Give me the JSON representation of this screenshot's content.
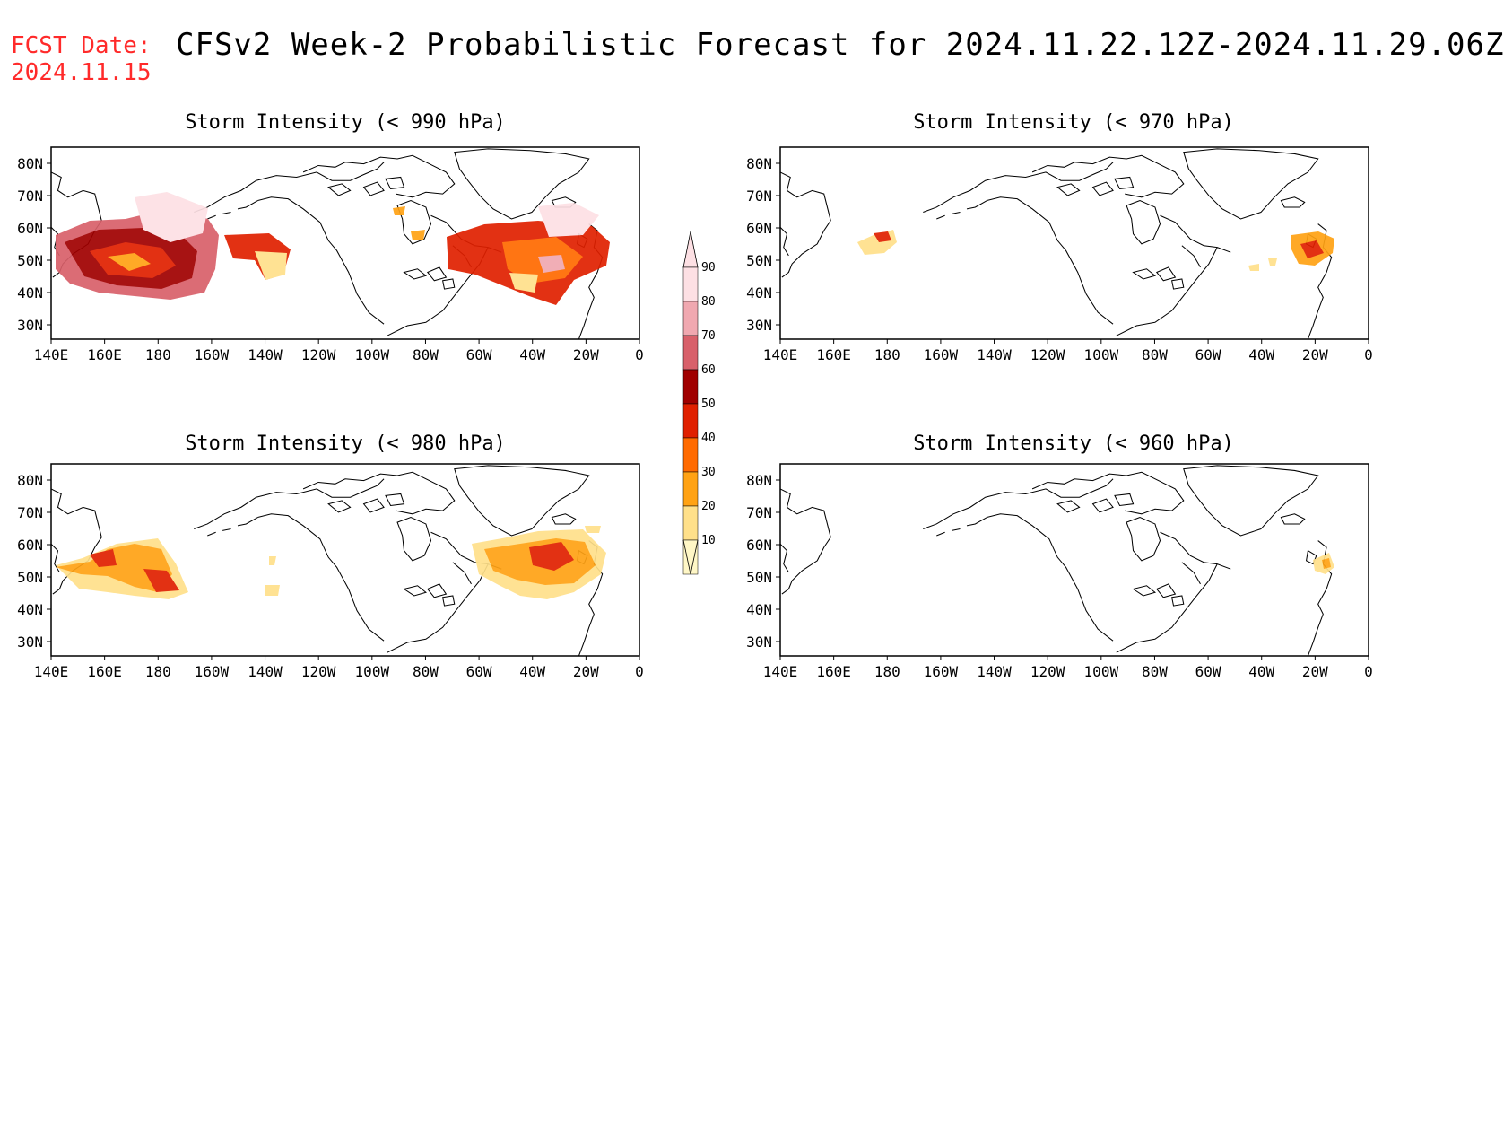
{
  "header": {
    "fcst_label": "FCST Date:",
    "fcst_date": "2024.11.15",
    "title": "CFSv2 Week-2 Probabilistic Forecast for 2024.11.22.12Z-2024.11.29.06Z"
  },
  "colors": {
    "title_red": "#ff2a2a",
    "scale": [
      "#fff7c6",
      "#ffe08a",
      "#ffa214",
      "#ff6a00",
      "#e02000",
      "#a00000",
      "#d8606a",
      "#f0a8b0",
      "#fde0e4"
    ]
  },
  "colorbar": {
    "labels": [
      "90",
      "80",
      "70",
      "60",
      "50",
      "40",
      "30",
      "20",
      "10"
    ]
  },
  "axes": {
    "lon_labels": [
      "140E",
      "160E",
      "180",
      "160W",
      "140W",
      "120W",
      "100W",
      "80W",
      "60W",
      "40W",
      "20W",
      "0"
    ],
    "lat_labels": [
      "80N",
      "70N",
      "60N",
      "50N",
      "40N",
      "30N"
    ]
  },
  "panels": [
    {
      "id": "p990",
      "title": "Storm Intensity (< 990 hPa)"
    },
    {
      "id": "p970",
      "title": "Storm Intensity (< 970 hPa)"
    },
    {
      "id": "p980",
      "title": "Storm Intensity (< 980 hPa)"
    },
    {
      "id": "p960",
      "title": "Storm Intensity (< 960 hPa)"
    }
  ]
}
